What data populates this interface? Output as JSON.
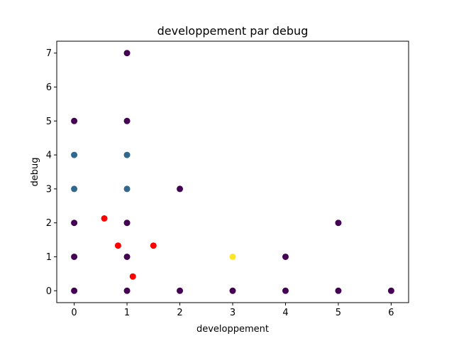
{
  "chart_data": {
    "type": "scatter",
    "title": "developpement par debug",
    "xlabel": "developpement",
    "ylabel": "debug",
    "xlim": [
      -0.33,
      6.33
    ],
    "ylim": [
      -0.35,
      7.35
    ],
    "x_ticks": [
      0,
      1,
      2,
      3,
      4,
      5,
      6
    ],
    "y_ticks": [
      0,
      1,
      2,
      3,
      4,
      5,
      6,
      7
    ],
    "grid": false,
    "legend": "none",
    "colors": {
      "purple": "#440154",
      "blue": "#31688e",
      "yellow": "#fde725",
      "red": "#ff0000"
    },
    "points": [
      {
        "x": 0,
        "y": 0,
        "color": "purple"
      },
      {
        "x": 0,
        "y": 1,
        "color": "purple"
      },
      {
        "x": 0,
        "y": 2,
        "color": "purple"
      },
      {
        "x": 0,
        "y": 3,
        "color": "blue"
      },
      {
        "x": 0,
        "y": 4,
        "color": "blue"
      },
      {
        "x": 0,
        "y": 5,
        "color": "purple"
      },
      {
        "x": 1,
        "y": 0,
        "color": "purple"
      },
      {
        "x": 1,
        "y": 1,
        "color": "purple"
      },
      {
        "x": 1,
        "y": 2,
        "color": "purple"
      },
      {
        "x": 1,
        "y": 3,
        "color": "blue"
      },
      {
        "x": 1,
        "y": 4,
        "color": "blue"
      },
      {
        "x": 1,
        "y": 5,
        "color": "purple"
      },
      {
        "x": 1,
        "y": 7,
        "color": "purple"
      },
      {
        "x": 2,
        "y": 0,
        "color": "purple"
      },
      {
        "x": 2,
        "y": 3,
        "color": "purple"
      },
      {
        "x": 3,
        "y": 0,
        "color": "purple"
      },
      {
        "x": 3,
        "y": 1,
        "color": "yellow"
      },
      {
        "x": 4,
        "y": 0,
        "color": "purple"
      },
      {
        "x": 4,
        "y": 1,
        "color": "purple"
      },
      {
        "x": 5,
        "y": 0,
        "color": "purple"
      },
      {
        "x": 5,
        "y": 2,
        "color": "purple"
      },
      {
        "x": 6,
        "y": 0,
        "color": "purple"
      },
      {
        "x": 0.57,
        "y": 2.13,
        "color": "red"
      },
      {
        "x": 0.83,
        "y": 1.33,
        "color": "red"
      },
      {
        "x": 1.5,
        "y": 1.33,
        "color": "red"
      },
      {
        "x": 1.11,
        "y": 0.42,
        "color": "red"
      }
    ]
  }
}
